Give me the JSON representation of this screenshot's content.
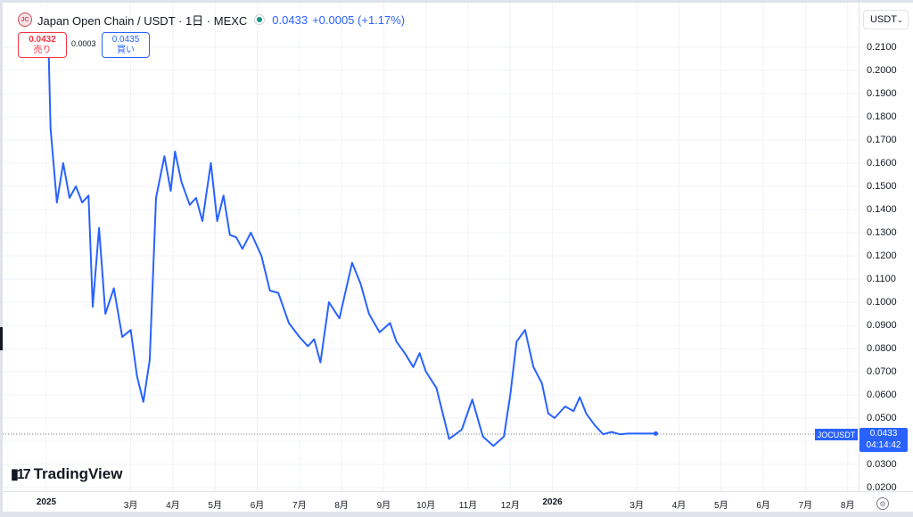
{
  "header": {
    "coin_icon_text": "JC",
    "title": "Japan Open Chain / USDT · 1日 · MEXC",
    "last_price": "0.0433",
    "change": "+0.0005 (+1.17%)"
  },
  "trade": {
    "sell_price": "0.0432",
    "sell_label": "売り",
    "spread": "0.0003",
    "buy_price": "0.0435",
    "buy_label": "買い"
  },
  "currency": "USDT",
  "price_label": {
    "symbol": "JOCUSDT",
    "price": "0.0433",
    "countdown": "04:14:42"
  },
  "watermark": "TradingView",
  "colors": {
    "line": "#2962ff",
    "sell": "#f23645",
    "buy": "#2962ff",
    "status": "#089981"
  },
  "chart_data": {
    "type": "line",
    "x_tick_labels": [
      "2025",
      "3月",
      "4月",
      "5月",
      "6月",
      "7月",
      "8月",
      "9月",
      "10月",
      "11月",
      "12月",
      "2026",
      "3月",
      "4月",
      "5月",
      "6月",
      "7月",
      "8月"
    ],
    "y_tick_labels": [
      "0.2100",
      "0.2000",
      "0.1900",
      "0.1800",
      "0.1700",
      "0.1600",
      "0.1500",
      "0.1400",
      "0.1300",
      "0.1200",
      "0.1100",
      "0.1000",
      "0.0900",
      "0.0800",
      "0.0700",
      "0.0600",
      "0.0500",
      "0.0400",
      "0.0300",
      "0.0200"
    ],
    "ylim": [
      0.02,
      0.21
    ],
    "x_unit": "months since January 2025",
    "series": [
      {
        "name": "JOCUSDT",
        "x": [
          0.05,
          0.1,
          0.25,
          0.4,
          0.55,
          0.7,
          0.85,
          1.0,
          1.1,
          1.25,
          1.4,
          1.6,
          1.8,
          2.0,
          2.15,
          2.3,
          2.45,
          2.6,
          2.8,
          2.95,
          3.05,
          3.2,
          3.4,
          3.55,
          3.7,
          3.9,
          4.05,
          4.2,
          4.35,
          4.5,
          4.65,
          4.85,
          5.1,
          5.3,
          5.5,
          5.75,
          6.0,
          6.2,
          6.35,
          6.5,
          6.7,
          6.95,
          7.25,
          7.45,
          7.65,
          7.9,
          8.15,
          8.3,
          8.5,
          8.7,
          8.85,
          9.0,
          9.25,
          9.55,
          9.85,
          10.1,
          10.35,
          10.6,
          10.85,
          11.0,
          11.15,
          11.35,
          11.55,
          11.75,
          11.9,
          12.05,
          12.3,
          12.5,
          12.65,
          12.8,
          13.0,
          13.2,
          13.4,
          13.6,
          13.8,
          14.0,
          14.15,
          14.3,
          14.45
        ],
        "values": [
          0.211,
          0.175,
          0.143,
          0.16,
          0.145,
          0.15,
          0.143,
          0.146,
          0.098,
          0.132,
          0.095,
          0.106,
          0.085,
          0.088,
          0.068,
          0.057,
          0.075,
          0.145,
          0.163,
          0.148,
          0.165,
          0.152,
          0.142,
          0.145,
          0.135,
          0.16,
          0.135,
          0.146,
          0.129,
          0.128,
          0.123,
          0.13,
          0.12,
          0.105,
          0.104,
          0.091,
          0.085,
          0.081,
          0.084,
          0.074,
          0.1,
          0.093,
          0.117,
          0.108,
          0.095,
          0.087,
          0.091,
          0.083,
          0.078,
          0.072,
          0.078,
          0.07,
          0.063,
          0.041,
          0.045,
          0.058,
          0.042,
          0.038,
          0.042,
          0.06,
          0.083,
          0.088,
          0.072,
          0.065,
          0.052,
          0.05,
          0.055,
          0.053,
          0.059,
          0.052,
          0.047,
          0.043,
          0.044,
          0.043,
          0.0433,
          0.0433,
          0.0433,
          0.0433,
          0.0433
        ]
      }
    ],
    "grid": true,
    "legend": "top-left"
  }
}
